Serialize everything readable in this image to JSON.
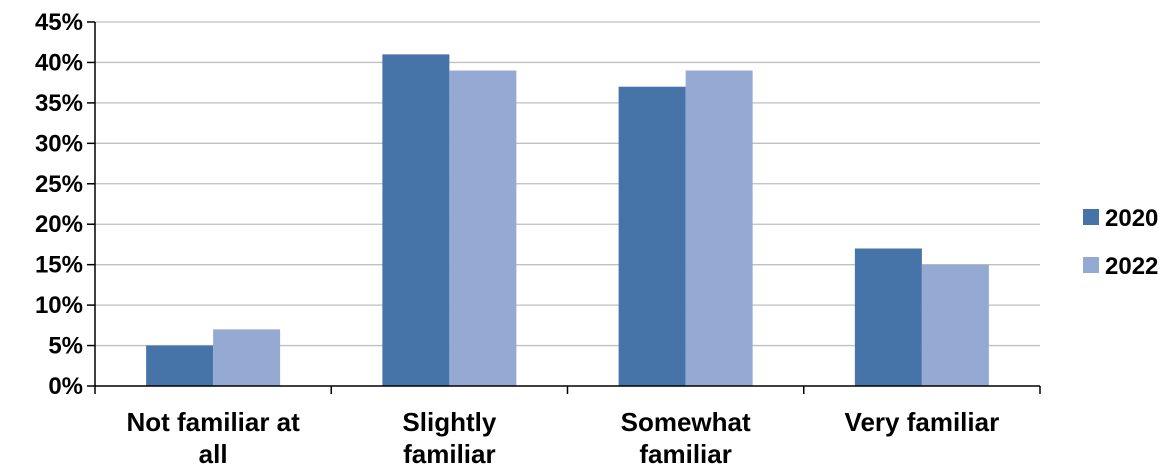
{
  "chart_data": {
    "type": "bar",
    "title": "",
    "xlabel": "",
    "ylabel": "",
    "categories": [
      [
        "Not familiar at",
        "all"
      ],
      [
        "Slightly",
        "familiar"
      ],
      [
        "Somewhat",
        "familiar"
      ],
      [
        "Very familiar"
      ]
    ],
    "series": [
      {
        "name": "2020",
        "color": "#4774a8",
        "values": [
          5,
          41,
          37,
          17
        ]
      },
      {
        "name": "2022",
        "color": "#95aad2",
        "values": [
          7,
          39,
          39,
          15
        ]
      }
    ],
    "ylim": [
      0,
      45
    ],
    "yticks": [
      "0%",
      "5%",
      "10%",
      "15%",
      "20%",
      "25%",
      "30%",
      "35%",
      "40%",
      "45%"
    ],
    "grid": true,
    "legend": "right"
  }
}
